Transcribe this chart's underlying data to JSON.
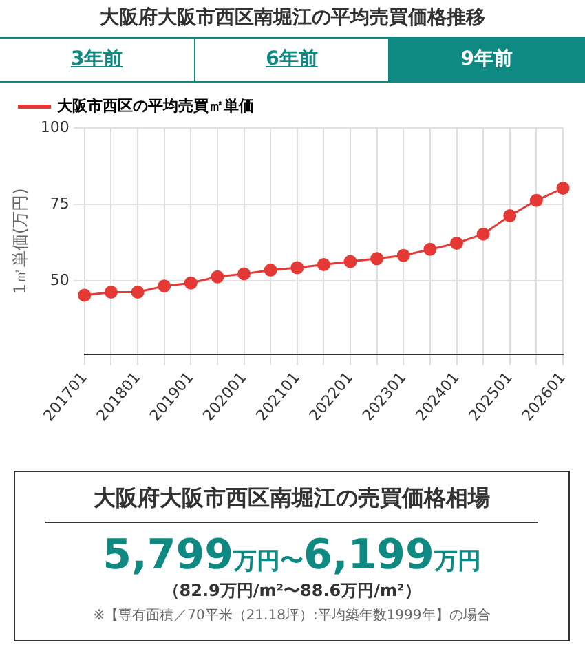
{
  "chart_data": [
    {
      "type": "line",
      "title": "大阪府大阪市西区南堀江の平均売買価格推移",
      "annotations": [
        "3年前",
        "6年前",
        "9年前"
      ],
      "ylabel": "1㎡単価(万円)",
      "categories": [
        "201701",
        null,
        "201801",
        null,
        "201901",
        null,
        "202001",
        null,
        "202101",
        null,
        "202201",
        null,
        "202301",
        null,
        "202401",
        null,
        "202501",
        null,
        "202601"
      ],
      "series": [
        {
          "name": "大阪市西区の平均売買㎡単価",
          "color": "#e53935",
          "values": [
            45.3,
            46.3,
            46.3,
            48.3,
            49.3,
            51.3,
            52.3,
            53.5,
            54.3,
            55.3,
            56.3,
            57.3,
            58.3,
            60.3,
            62.3,
            65.3,
            71.3,
            76.3,
            80.3
          ]
        }
      ],
      "ylim": [
        26,
        100
      ],
      "yticks": [
        50,
        75,
        100
      ],
      "grid": true,
      "legend": "top left",
      "marker": "circle",
      "line_style": "solid"
    },
    {
      "type": "other",
      "title": "大阪府大阪市西区南堀江の売買価格相場",
      "annotations": [
        "5,799万円〜6,199万円",
        "（82.9万円/m²〜88.6万円/m²）",
        "※【専有面積／70平米（21.18坪）:平均築年数1999年】の場合"
      ]
    }
  ]
}
